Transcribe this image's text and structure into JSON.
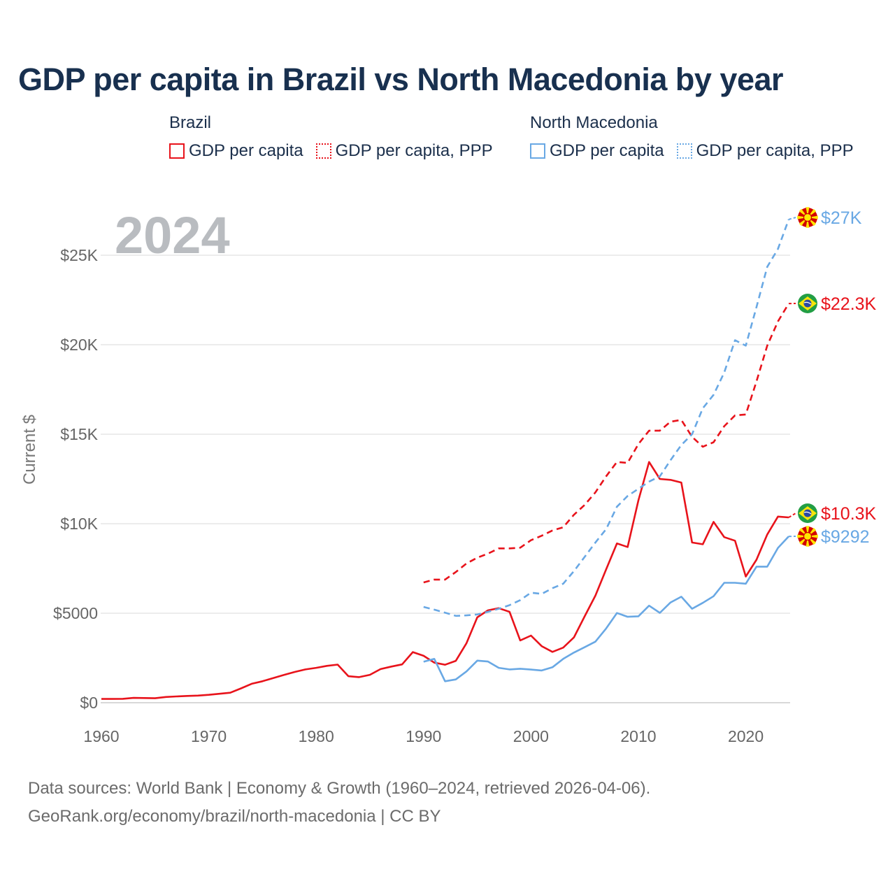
{
  "title": "GDP per capita in Brazil vs North Macedonia by year",
  "legend": {
    "groups": [
      {
        "name": "Brazil",
        "items": [
          {
            "label": "GDP per capita",
            "color": "#e8131b",
            "style": "solid"
          },
          {
            "label": "GDP per capita, PPP",
            "color": "#e8131b",
            "style": "dotted"
          }
        ]
      },
      {
        "name": "North Macedonia",
        "items": [
          {
            "label": "GDP per capita",
            "color": "#69a8e4",
            "style": "solid"
          },
          {
            "label": "GDP per capita, PPP",
            "color": "#69a8e4",
            "style": "dotted"
          }
        ]
      }
    ]
  },
  "footer": {
    "line1": "Data sources: World Bank | Economy & Growth (1960–2024, retrieved 2026-04-06).",
    "line2": "GeoRank.org/economy/brazil/north-macedonia | CC BY"
  },
  "chart_data": {
    "type": "line",
    "title": "GDP per capita in Brazil vs North Macedonia by year",
    "year_label": "2024",
    "xlabel": "",
    "ylabel": "Current $",
    "xlim": [
      1960,
      2024
    ],
    "ylim": [
      0,
      28000
    ],
    "x_ticks": [
      1960,
      1970,
      1980,
      1990,
      2000,
      2010,
      2020
    ],
    "x_tick_labels": [
      "1960",
      "1970",
      "1980",
      "1990",
      "2000",
      "2010",
      "2020"
    ],
    "y_ticks": [
      0,
      5000,
      10000,
      15000,
      20000,
      25000
    ],
    "y_tick_labels": [
      "$0",
      "$5000",
      "$10K",
      "$15K",
      "$20K",
      "$25K"
    ],
    "grid": true,
    "series": [
      {
        "name": "Brazil GDP per capita",
        "country": "Brazil",
        "color": "#e8131b",
        "dashed": false,
        "flag": "brazil-flag",
        "end_label": "$10.3K",
        "x": [
          1960,
          1961,
          1962,
          1963,
          1964,
          1965,
          1966,
          1967,
          1968,
          1969,
          1970,
          1971,
          1972,
          1973,
          1974,
          1975,
          1976,
          1977,
          1978,
          1979,
          1980,
          1981,
          1982,
          1983,
          1984,
          1985,
          1986,
          1987,
          1988,
          1989,
          1990,
          1991,
          1992,
          1993,
          1994,
          1995,
          1996,
          1997,
          1998,
          1999,
          2000,
          2001,
          2002,
          2003,
          2004,
          2005,
          2006,
          2007,
          2008,
          2009,
          2010,
          2011,
          2012,
          2013,
          2014,
          2015,
          2016,
          2017,
          2018,
          2019,
          2020,
          2021,
          2022,
          2023,
          2024
        ],
        "values": [
          210,
          210,
          220,
          270,
          260,
          250,
          320,
          350,
          380,
          400,
          440,
          500,
          560,
          800,
          1060,
          1200,
          1380,
          1550,
          1720,
          1860,
          1950,
          2060,
          2130,
          1480,
          1430,
          1560,
          1880,
          2020,
          2140,
          2830,
          2620,
          2240,
          2120,
          2340,
          3330,
          4770,
          5160,
          5280,
          5080,
          3480,
          3750,
          3160,
          2840,
          3080,
          3650,
          4830,
          5980,
          7450,
          8900,
          8700,
          11300,
          13450,
          12500,
          12450,
          12300,
          8950,
          8850,
          10100,
          9250,
          9050,
          7050,
          7990,
          9400,
          10400,
          10350
        ]
      },
      {
        "name": "Brazil GDP per capita, PPP",
        "country": "Brazil",
        "color": "#e8131b",
        "dashed": true,
        "flag": "brazil-flag",
        "end_label": "$22.3K",
        "x": [
          1990,
          1991,
          1992,
          1993,
          1994,
          1995,
          1996,
          1997,
          1998,
          1999,
          2000,
          2001,
          2002,
          2003,
          2004,
          2005,
          2006,
          2007,
          2008,
          2009,
          2010,
          2011,
          2012,
          2013,
          2014,
          2015,
          2016,
          2017,
          2018,
          2019,
          2020,
          2021,
          2022,
          2023,
          2024
        ],
        "values": [
          6720,
          6880,
          6880,
          7300,
          7780,
          8100,
          8330,
          8620,
          8620,
          8660,
          9080,
          9330,
          9620,
          9800,
          10500,
          11050,
          11750,
          12650,
          13450,
          13400,
          14450,
          15200,
          15200,
          15700,
          15800,
          14850,
          14300,
          14550,
          15450,
          16050,
          16100,
          17950,
          19950,
          21300,
          22300
        ]
      },
      {
        "name": "North Macedonia GDP per capita",
        "country": "North Macedonia",
        "color": "#69a8e4",
        "dashed": false,
        "flag": "north-macedonia-flag",
        "end_label": "$9292",
        "x": [
          1990,
          1991,
          1992,
          1993,
          1994,
          1995,
          1996,
          1997,
          1998,
          1999,
          2000,
          2001,
          2002,
          2003,
          2004,
          2005,
          2006,
          2007,
          2008,
          2009,
          2010,
          2011,
          2012,
          2013,
          2014,
          2015,
          2016,
          2017,
          2018,
          2019,
          2020,
          2021,
          2022,
          2023,
          2024
        ],
        "values": [
          2290,
          2450,
          1200,
          1300,
          1750,
          2350,
          2300,
          1950,
          1860,
          1900,
          1850,
          1800,
          1980,
          2450,
          2800,
          3100,
          3410,
          4150,
          5010,
          4800,
          4830,
          5420,
          5020,
          5600,
          5920,
          5250,
          5580,
          5950,
          6700,
          6700,
          6650,
          7600,
          7600,
          8650,
          9292
        ]
      },
      {
        "name": "North Macedonia GDP per capita, PPP",
        "country": "North Macedonia",
        "color": "#69a8e4",
        "dashed": true,
        "flag": "north-macedonia-flag",
        "end_label": "$27K",
        "x": [
          1990,
          1991,
          1992,
          1993,
          1994,
          1995,
          1996,
          1997,
          1998,
          1999,
          2000,
          2001,
          2002,
          2003,
          2004,
          2005,
          2006,
          2007,
          2008,
          2009,
          2010,
          2011,
          2012,
          2013,
          2014,
          2015,
          2016,
          2017,
          2018,
          2019,
          2020,
          2021,
          2022,
          2023,
          2024
        ],
        "values": [
          5350,
          5200,
          5030,
          4850,
          4880,
          4930,
          5080,
          5250,
          5450,
          5730,
          6150,
          6080,
          6400,
          6650,
          7350,
          8150,
          8950,
          9700,
          10950,
          11550,
          11950,
          12350,
          12650,
          13550,
          14400,
          15000,
          16450,
          17200,
          18450,
          20250,
          19950,
          22100,
          24350,
          25350,
          27000
        ]
      }
    ]
  }
}
